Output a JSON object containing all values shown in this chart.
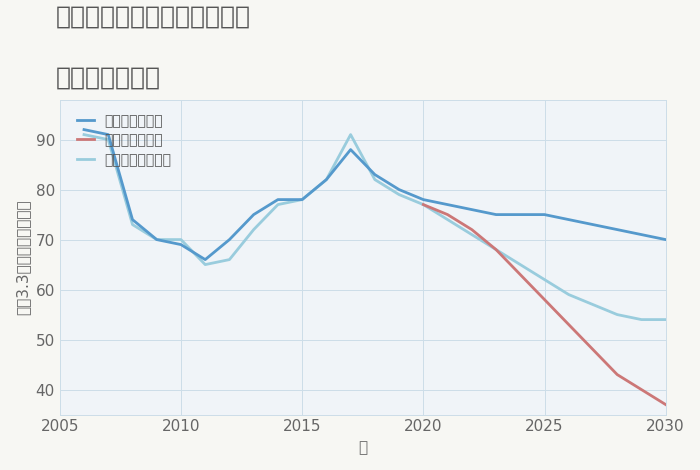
{
  "title_line1": "神奈川県横浜市南区永田南の",
  "title_line2": "土地の価格推移",
  "xlabel": "年",
  "ylabel": "坪（3.3㎡）単価（万円）",
  "background_color": "#f7f7f3",
  "plot_background": "#f0f4f8",
  "good_scenario": {
    "label": "グッドシナリオ",
    "color": "#5599cc",
    "x": [
      2006,
      2007,
      2008,
      2009,
      2010,
      2011,
      2012,
      2013,
      2014,
      2015,
      2016,
      2017,
      2018,
      2019,
      2020,
      2021,
      2022,
      2023,
      2024,
      2025,
      2026,
      2027,
      2028,
      2029,
      2030
    ],
    "y": [
      92,
      91,
      74,
      70,
      69,
      66,
      70,
      75,
      78,
      78,
      82,
      88,
      83,
      80,
      78,
      77,
      76,
      75,
      75,
      75,
      74,
      73,
      72,
      71,
      70
    ]
  },
  "bad_scenario": {
    "label": "バッドシナリオ",
    "color": "#cc7777",
    "x": [
      2020,
      2021,
      2022,
      2023,
      2024,
      2025,
      2026,
      2027,
      2028,
      2029,
      2030
    ],
    "y": [
      77,
      75,
      72,
      68,
      63,
      58,
      53,
      48,
      43,
      40,
      37
    ]
  },
  "normal_scenario": {
    "label": "ノーマルシナリオ",
    "color": "#99ccdd",
    "x": [
      2006,
      2007,
      2008,
      2009,
      2010,
      2011,
      2012,
      2013,
      2014,
      2015,
      2016,
      2017,
      2018,
      2019,
      2020,
      2021,
      2022,
      2023,
      2024,
      2025,
      2026,
      2027,
      2028,
      2029,
      2030
    ],
    "y": [
      91,
      90,
      73,
      70,
      70,
      65,
      66,
      72,
      77,
      78,
      82,
      91,
      82,
      79,
      77,
      74,
      71,
      68,
      65,
      62,
      59,
      57,
      55,
      54,
      54
    ]
  },
  "xlim": [
    2005,
    2030
  ],
  "ylim": [
    35,
    98
  ],
  "yticks": [
    40,
    50,
    60,
    70,
    80,
    90
  ],
  "xticks": [
    2005,
    2010,
    2015,
    2020,
    2025,
    2030
  ],
  "title_fontsize": 18,
  "axis_fontsize": 11,
  "tick_fontsize": 11,
  "legend_fontsize": 10,
  "linewidth": 2.0
}
